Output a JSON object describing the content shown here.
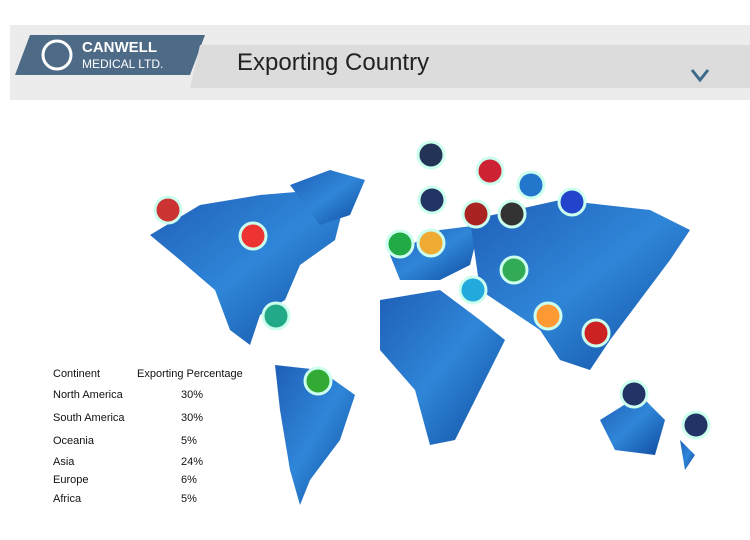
{
  "header": {
    "brand": "CANWELL",
    "brand_sub": "MEDICAL LTD.",
    "title": "Exporting Country"
  },
  "table": {
    "columns": [
      "Continent",
      "Exporting Percentage"
    ],
    "rows": [
      [
        "North America",
        "30%"
      ],
      [
        "South America",
        "30%"
      ],
      [
        "Oceania",
        "5%"
      ],
      [
        "Asia",
        "24%"
      ],
      [
        "Europe",
        "6%"
      ],
      [
        "Africa",
        "5%"
      ]
    ]
  }
}
